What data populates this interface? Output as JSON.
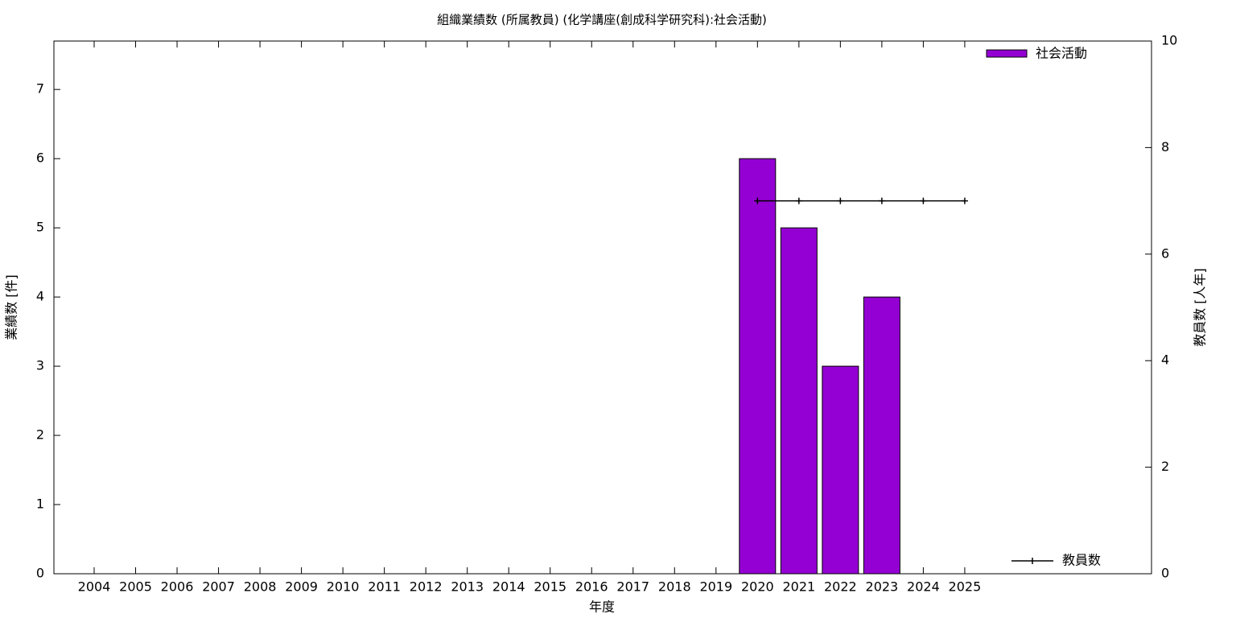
{
  "chart_data": {
    "type": "bar",
    "title": "組織業績数 (所属教員) (化学講座(創成科学研究科):社会活動)",
    "x_label": "年度",
    "y_label": "業績数 [件]",
    "y2_label": "教員数 [人年]",
    "categories": [
      "2004",
      "2005",
      "2006",
      "2007",
      "2008",
      "2009",
      "2010",
      "2011",
      "2012",
      "2013",
      "2014",
      "2015",
      "2016",
      "2017",
      "2018",
      "2019",
      "2020",
      "2021",
      "2022",
      "2023",
      "2024",
      "2025"
    ],
    "series": [
      {
        "name": "社会活動",
        "type": "bar",
        "color": "#9400d3",
        "values": [
          0,
          0,
          0,
          0,
          0,
          0,
          0,
          0,
          0,
          0,
          0,
          0,
          0,
          0,
          0,
          0,
          6,
          5,
          3,
          4,
          0,
          0
        ]
      },
      {
        "name": "教員数",
        "type": "line",
        "axis": "y2",
        "color": "#000000",
        "values": [
          null,
          null,
          null,
          null,
          null,
          null,
          null,
          null,
          null,
          null,
          null,
          null,
          null,
          null,
          null,
          null,
          7,
          7,
          7,
          7,
          7,
          7
        ]
      }
    ],
    "ylim": [
      0,
      7.7
    ],
    "yticks": [
      0,
      1,
      2,
      3,
      4,
      5,
      6,
      7
    ],
    "y2lim": [
      0,
      10
    ],
    "y2ticks": [
      0,
      2,
      4,
      6,
      8,
      10
    ]
  }
}
